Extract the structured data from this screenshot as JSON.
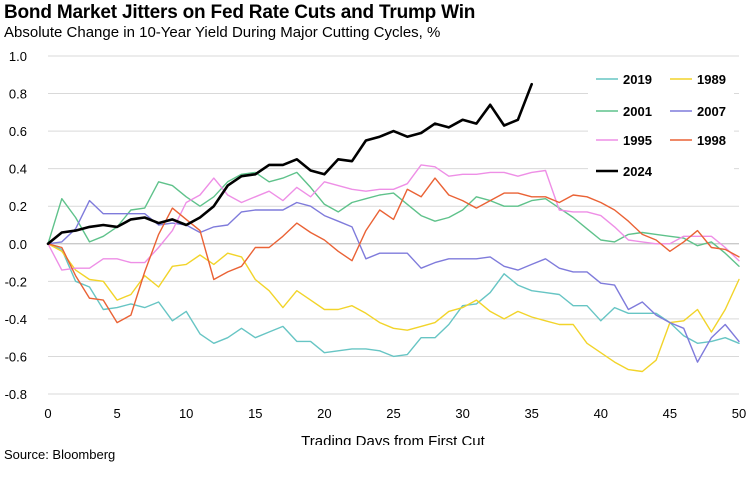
{
  "title": "Bond Market Jitters on Fed Rate Cuts and Trump Win",
  "subtitle": "Absolute Change in 10-Year Yield During Major Cutting Cycles, %",
  "source": "Source: Bloomberg",
  "chart_data": {
    "type": "line",
    "title": "Bond Market Jitters on Fed Rate Cuts and Trump Win",
    "subtitle": "Absolute Change in 10-Year Yield During Major Cutting Cycles, %",
    "xlabel": "Trading Days from First Cut",
    "ylabel": "",
    "xlim": [
      0,
      50
    ],
    "ylim": [
      -0.8,
      1.0
    ],
    "xticks": [
      0,
      5,
      10,
      15,
      20,
      25,
      30,
      35,
      40,
      45,
      50
    ],
    "xtick_labels": [
      "0",
      "5",
      "10",
      "15",
      "20",
      "25",
      "30",
      "35",
      "40",
      "45",
      "50"
    ],
    "yticks": [
      -0.8,
      -0.6,
      -0.4,
      -0.2,
      0.0,
      0.2,
      0.4,
      0.6,
      0.8,
      1.0
    ],
    "ytick_labels": [
      "-0.8",
      "-0.6",
      "-0.4",
      "-0.2",
      "0.0",
      "0.2",
      "0.4",
      "0.6",
      "0.8",
      "1.0"
    ],
    "grid": "horizontal",
    "legend_position": "top-right",
    "series": [
      {
        "name": "2019",
        "color": "#67c5c4",
        "values": [
          0.0,
          -0.03,
          -0.2,
          -0.23,
          -0.35,
          -0.34,
          -0.32,
          -0.34,
          -0.31,
          -0.41,
          -0.36,
          -0.48,
          -0.53,
          -0.5,
          -0.45,
          -0.5,
          -0.47,
          -0.44,
          -0.52,
          -0.52,
          -0.58,
          -0.57,
          -0.56,
          -0.56,
          -0.57,
          -0.6,
          -0.59,
          -0.5,
          -0.5,
          -0.43,
          -0.33,
          -0.32,
          -0.26,
          -0.16,
          -0.22,
          -0.25,
          -0.26,
          -0.27,
          -0.33,
          -0.33,
          -0.41,
          -0.34,
          -0.37,
          -0.37,
          -0.37,
          -0.42,
          -0.49,
          -0.53,
          -0.52,
          -0.5,
          -0.53
        ]
      },
      {
        "name": "1989",
        "color": "#f2d42a",
        "values": [
          0.0,
          -0.04,
          -0.14,
          -0.19,
          -0.2,
          -0.3,
          -0.27,
          -0.17,
          -0.23,
          -0.12,
          -0.11,
          -0.06,
          -0.11,
          -0.05,
          -0.07,
          -0.19,
          -0.25,
          -0.34,
          -0.25,
          -0.3,
          -0.35,
          -0.35,
          -0.33,
          -0.37,
          -0.42,
          -0.45,
          -0.46,
          -0.44,
          -0.42,
          -0.36,
          -0.34,
          -0.3,
          -0.36,
          -0.4,
          -0.36,
          -0.39,
          -0.41,
          -0.43,
          -0.43,
          -0.53,
          -0.58,
          -0.63,
          -0.67,
          -0.68,
          -0.62,
          -0.42,
          -0.41,
          -0.35,
          -0.47,
          -0.35,
          -0.19
        ]
      },
      {
        "name": "2001",
        "color": "#5fc28b",
        "values": [
          0.0,
          0.24,
          0.14,
          0.01,
          0.04,
          0.09,
          0.18,
          0.19,
          0.33,
          0.31,
          0.25,
          0.2,
          0.25,
          0.33,
          0.37,
          0.38,
          0.33,
          0.35,
          0.38,
          0.3,
          0.21,
          0.17,
          0.22,
          0.24,
          0.26,
          0.27,
          0.21,
          0.15,
          0.12,
          0.14,
          0.18,
          0.25,
          0.23,
          0.2,
          0.2,
          0.23,
          0.24,
          0.19,
          0.14,
          0.08,
          0.02,
          0.01,
          0.05,
          0.06,
          0.05,
          0.04,
          0.03,
          -0.01,
          0.01,
          -0.05,
          -0.12
        ]
      },
      {
        "name": "2007",
        "color": "#7f7bdb",
        "values": [
          0.0,
          0.01,
          0.08,
          0.23,
          0.16,
          0.16,
          0.16,
          0.16,
          0.1,
          0.11,
          0.1,
          0.06,
          0.09,
          0.1,
          0.17,
          0.18,
          0.18,
          0.18,
          0.22,
          0.2,
          0.15,
          0.12,
          0.09,
          -0.08,
          -0.05,
          -0.05,
          -0.05,
          -0.13,
          -0.1,
          -0.08,
          -0.08,
          -0.08,
          -0.07,
          -0.12,
          -0.14,
          -0.11,
          -0.08,
          -0.13,
          -0.15,
          -0.15,
          -0.21,
          -0.22,
          -0.35,
          -0.31,
          -0.38,
          -0.42,
          -0.45,
          -0.63,
          -0.5,
          -0.43,
          -0.52
        ]
      },
      {
        "name": "1995",
        "color": "#ee8fe6",
        "values": [
          0.0,
          -0.14,
          -0.13,
          -0.13,
          -0.08,
          -0.08,
          -0.1,
          -0.1,
          -0.02,
          0.07,
          0.22,
          0.26,
          0.35,
          0.26,
          0.22,
          0.25,
          0.28,
          0.23,
          0.3,
          0.25,
          0.33,
          0.31,
          0.29,
          0.28,
          0.29,
          0.29,
          0.32,
          0.42,
          0.41,
          0.36,
          0.37,
          0.37,
          0.38,
          0.38,
          0.36,
          0.38,
          0.39,
          0.18,
          0.17,
          0.17,
          0.15,
          0.09,
          0.02,
          0.01,
          0.0,
          0.0,
          0.04,
          0.04,
          0.04,
          -0.02,
          -0.09
        ]
      },
      {
        "name": "1998",
        "color": "#ea6235",
        "values": [
          0.0,
          -0.02,
          -0.17,
          -0.29,
          -0.3,
          -0.42,
          -0.38,
          -0.15,
          0.05,
          0.19,
          0.13,
          0.07,
          -0.19,
          -0.15,
          -0.12,
          -0.02,
          -0.02,
          0.04,
          0.11,
          0.06,
          0.02,
          -0.04,
          -0.09,
          0.07,
          0.18,
          0.13,
          0.29,
          0.25,
          0.35,
          0.26,
          0.23,
          0.19,
          0.23,
          0.27,
          0.27,
          0.25,
          0.25,
          0.22,
          0.26,
          0.25,
          0.22,
          0.18,
          0.12,
          0.05,
          0.02,
          -0.04,
          0.01,
          0.07,
          -0.02,
          -0.03,
          -0.07
        ]
      },
      {
        "name": "2024",
        "color": "#000000",
        "values": [
          0.0,
          0.06,
          0.07,
          0.09,
          0.1,
          0.09,
          0.13,
          0.14,
          0.11,
          0.13,
          0.1,
          0.14,
          0.2,
          0.31,
          0.36,
          0.37,
          0.42,
          0.42,
          0.45,
          0.39,
          0.37,
          0.45,
          0.44,
          0.55,
          0.57,
          0.6,
          0.57,
          0.59,
          0.64,
          0.62,
          0.66,
          0.64,
          0.74,
          0.63,
          0.66,
          0.85
        ]
      }
    ]
  }
}
